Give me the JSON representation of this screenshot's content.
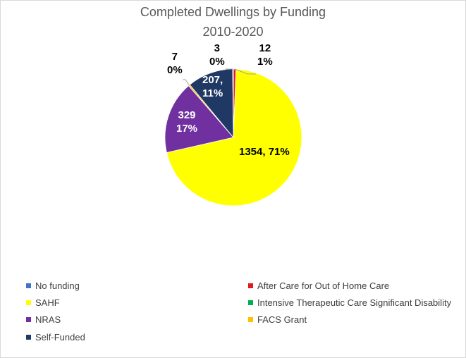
{
  "chart_data": {
    "type": "pie",
    "title": "Completed Dwellings by Funding",
    "subtitle": "2010-2020",
    "slices": [
      {
        "name": "No funding",
        "value": 0,
        "color": "#4472c4",
        "label": ""
      },
      {
        "name": "After Care for Out of Home Care",
        "value": 12,
        "color": "#e31a1c",
        "label": "12\n1%"
      },
      {
        "name": "SAHF",
        "value": 1354,
        "color": "#ffff00",
        "label": "1354, 71%"
      },
      {
        "name": "Intensive Therapeutic Care Significant Disability",
        "value": 0,
        "color": "#00b050",
        "label": ""
      },
      {
        "name": "NRAS",
        "value": 329,
        "color": "#7030a0",
        "label": "329\n17%"
      },
      {
        "name": "FACS Grant",
        "value": 7,
        "color": "#ffc000",
        "label": "7\n0%"
      },
      {
        "name": "Self-Funded",
        "value": 207,
        "color": "#203864",
        "label": "207,\n11%"
      },
      {
        "name": "Self-Funded-leader",
        "value": 3,
        "color": "#203864",
        "label": "3\n0%"
      }
    ],
    "legend_position": "bottom"
  }
}
